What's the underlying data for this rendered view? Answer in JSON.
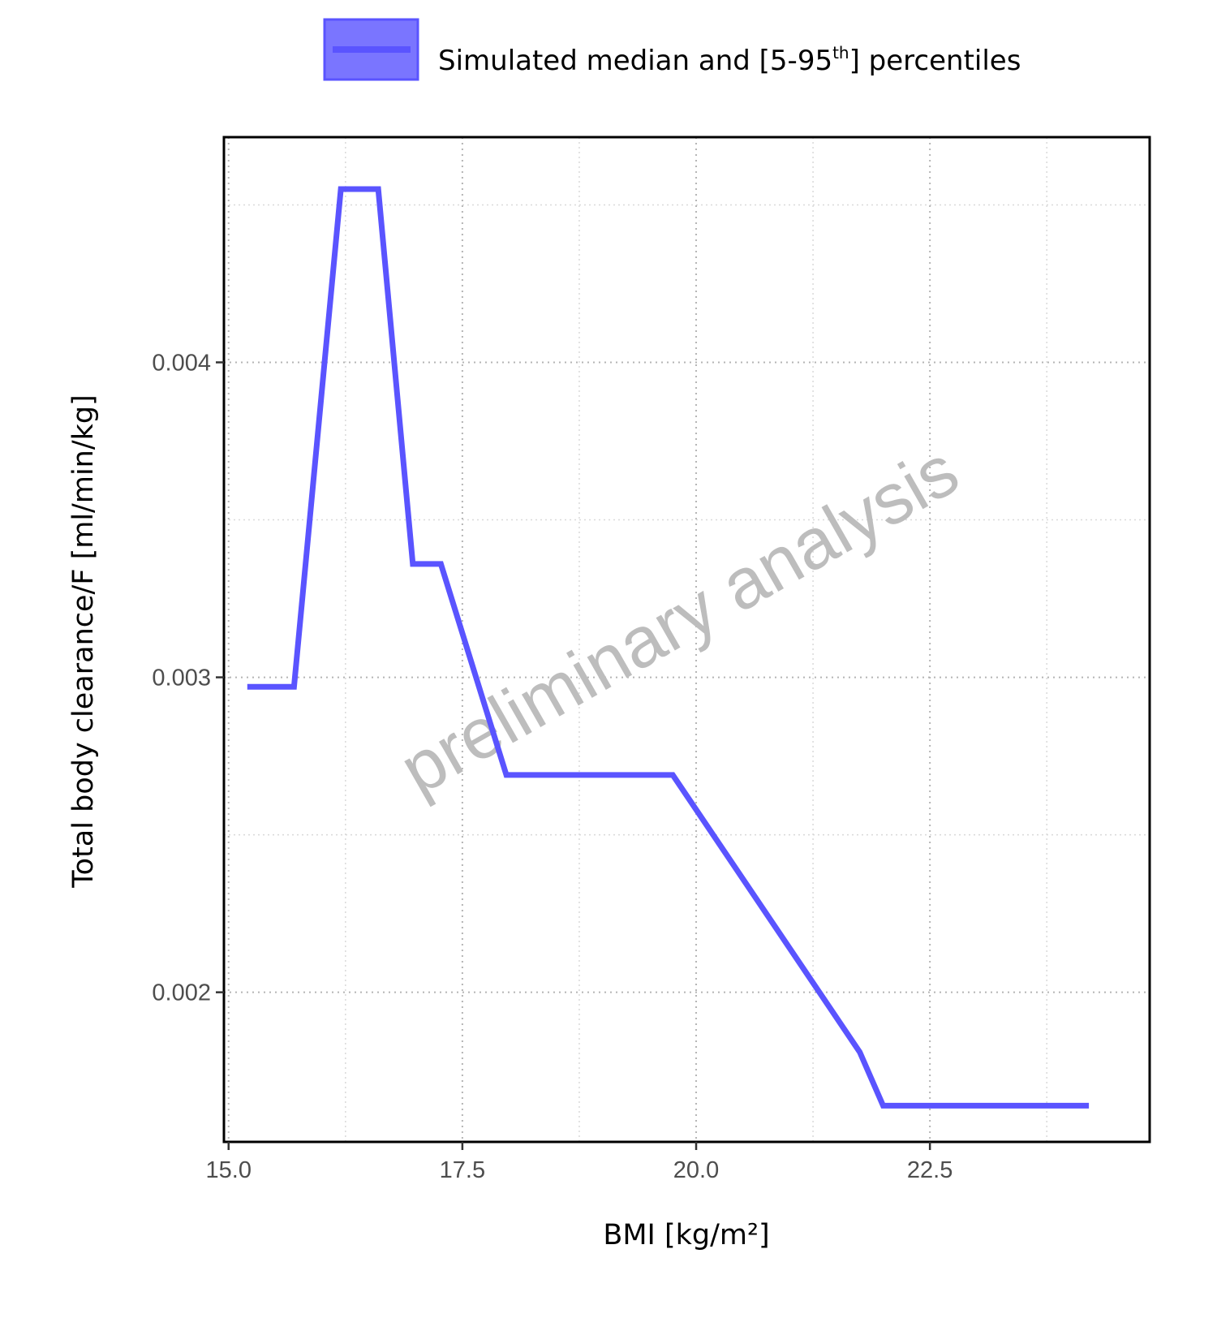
{
  "chart_data": {
    "type": "line",
    "title": "",
    "xlabel": "BMI [kg/m²]",
    "ylabel": "Total body clearance/F [ml/min/kg]",
    "xlim": [
      14.95,
      24.85
    ],
    "ylim": [
      0.001525,
      0.004715
    ],
    "x_ticks": [
      "15.0",
      "17.5",
      "20.0",
      "22.5"
    ],
    "y_ticks": [
      "0.002",
      "0.003",
      "0.004"
    ],
    "grid": true,
    "legend_position": "top",
    "watermark": "preliminary analysis",
    "series": [
      {
        "name": "Simulated median and [5-95th] percentiles",
        "color": "#5a54ff",
        "x": [
          15.2,
          15.7,
          16.2,
          16.6,
          16.97,
          17.27,
          17.97,
          19.75,
          21.75,
          22.0,
          24.2
        ],
        "y": [
          0.00297,
          0.00297,
          0.00455,
          0.00455,
          0.00336,
          0.00336,
          0.00269,
          0.00269,
          0.00181,
          0.00164,
          0.00164
        ]
      }
    ]
  }
}
